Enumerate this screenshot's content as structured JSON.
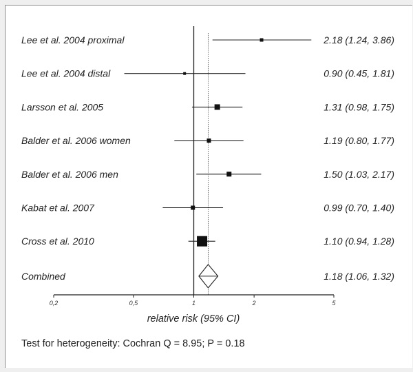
{
  "chart_data": {
    "type": "forest",
    "x_scale": "log",
    "xlim": [
      0.2,
      5
    ],
    "x_ticks": [
      "0,2",
      "0,5",
      "1",
      "2",
      "5"
    ],
    "x_tick_values": [
      0.2,
      0.5,
      1,
      2,
      5
    ],
    "xlabel": "relative risk (95% CI)",
    "reference_line": 1,
    "summary_line": 1.18,
    "studies": [
      {
        "label": "Lee et al. 2004 proximal",
        "rr": 2.18,
        "lo": 1.24,
        "hi": 3.86,
        "est_text": "2.18 (1.24, 3.86)",
        "weight": 1
      },
      {
        "label": "Lee et al. 2004 distal",
        "rr": 0.9,
        "lo": 0.45,
        "hi": 1.81,
        "est_text": "0.90 (0.45, 1.81)",
        "weight": 0.5
      },
      {
        "label": "Larsson et al. 2005",
        "rr": 1.31,
        "lo": 0.98,
        "hi": 1.75,
        "est_text": "1.31 (0.98, 1.75)",
        "weight": 2.2
      },
      {
        "label": "Balder et al. 2006 women",
        "rr": 1.19,
        "lo": 0.8,
        "hi": 1.77,
        "est_text": "1.19 (0.80, 1.77)",
        "weight": 1.3
      },
      {
        "label": "Balder et al. 2006 men",
        "rr": 1.5,
        "lo": 1.03,
        "hi": 2.17,
        "est_text": "1.50 (1.03, 2.17)",
        "weight": 1.5
      },
      {
        "label": "Kabat et al. 2007",
        "rr": 0.99,
        "lo": 0.7,
        "hi": 1.4,
        "est_text": "0.99 (0.70, 1.40)",
        "weight": 1.3
      },
      {
        "label": "Cross et al. 2010",
        "rr": 1.1,
        "lo": 0.94,
        "hi": 1.28,
        "est_text": "1.10 (0.94, 1.28)",
        "weight": 8
      }
    ],
    "combined": {
      "label": "Combined",
      "rr": 1.18,
      "lo": 1.06,
      "hi": 1.32,
      "est_text": "1.18 (1.06, 1.32)"
    },
    "footnote": "Test for heterogeneity: Cochran Q = 8.95; P = 0.18",
    "colors": {
      "marker": "#111111",
      "axis": "#222222",
      "background": "#efefef",
      "panel": "#ffffff"
    }
  }
}
